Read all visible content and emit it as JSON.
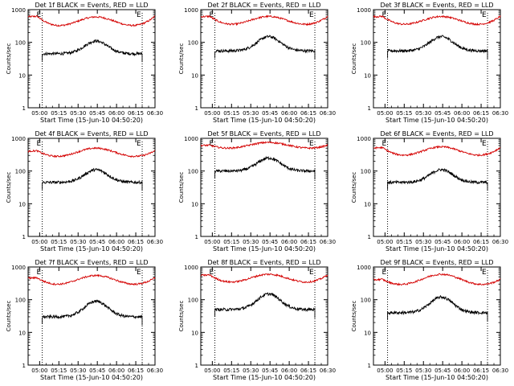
{
  "colors": {
    "events": "#000000",
    "lld": "#d40000",
    "axes": "#000000"
  },
  "chart_data": [
    {
      "type": "line",
      "title": "Det 1f BLACK = Events, RED = LLD",
      "xlabel": "Start Time (15-Jun-10 04:50:20)",
      "ylabel": "Counts/sec",
      "ylim": [
        1,
        1000
      ],
      "yscale": "log",
      "x_ticks": [
        "05:00",
        "05:15",
        "05:30",
        "05:45",
        "06:00",
        "06:15",
        "06:30"
      ],
      "y_ticks": [
        "1",
        "10",
        "100",
        "1000"
      ],
      "x_start": "04:51",
      "x_end": "06:30",
      "markers": [
        {
          "t": "05:02",
          "label": "E"
        },
        {
          "t": "06:20",
          "label": "E"
        }
      ],
      "peak_t": "05:44",
      "series": [
        {
          "name": "LLD",
          "base": 170,
          "peak": 600,
          "edge": 600
        },
        {
          "name": "Events",
          "base": 45,
          "peak": 110,
          "edge": 45
        }
      ]
    },
    {
      "type": "line",
      "title": "Det 2f BLACK = Events, RED = LLD",
      "xlabel": "Start Time (15-Jun-10 04:50:20)",
      "ylabel": "Counts/sec",
      "ylim": [
        1,
        1000
      ],
      "yscale": "log",
      "x_ticks": [
        "05:00",
        "05:15",
        "05:30",
        "05:45",
        "06:00",
        "06:15",
        "06:30"
      ],
      "y_ticks": [
        "1",
        "10",
        "100",
        "1000"
      ],
      "x_start": "04:51",
      "x_end": "06:30",
      "markers": [
        {
          "t": "05:02",
          "label": "E"
        },
        {
          "t": "06:20",
          "label": "E"
        }
      ],
      "peak_t": "05:44",
      "series": [
        {
          "name": "LLD",
          "base": 200,
          "peak": 620,
          "edge": 600
        },
        {
          "name": "Events",
          "base": 55,
          "peak": 150,
          "edge": 55
        }
      ]
    },
    {
      "type": "line",
      "title": "Det 3f BLACK = Events, RED = LLD",
      "xlabel": "Start Time (15-Jun-10 04:50:20)",
      "ylabel": "Counts/sec",
      "ylim": [
        1,
        1000
      ],
      "yscale": "log",
      "x_ticks": [
        "05:00",
        "05:15",
        "05:30",
        "05:45",
        "06:00",
        "06:15",
        "06:30"
      ],
      "y_ticks": [
        "1",
        "10",
        "100",
        "1000"
      ],
      "x_start": "04:51",
      "x_end": "06:30",
      "markers": [
        {
          "t": "05:02",
          "label": "E"
        },
        {
          "t": "06:20",
          "label": "E"
        }
      ],
      "peak_t": "05:44",
      "series": [
        {
          "name": "LLD",
          "base": 200,
          "peak": 620,
          "edge": 600
        },
        {
          "name": "Events",
          "base": 55,
          "peak": 150,
          "edge": 55
        }
      ]
    },
    {
      "type": "line",
      "title": "Det 4f BLACK = Events, RED = LLD",
      "xlabel": "Start Time (15-Jun-10 04:50:20)",
      "ylabel": "Counts/sec",
      "ylim": [
        1,
        1000
      ],
      "yscale": "log",
      "x_ticks": [
        "05:00",
        "05:15",
        "05:30",
        "05:45",
        "06:00",
        "06:15",
        "06:30"
      ],
      "y_ticks": [
        "1",
        "10",
        "100",
        "1000"
      ],
      "x_start": "04:51",
      "x_end": "06:30",
      "markers": [
        {
          "t": "05:02",
          "label": "E"
        },
        {
          "t": "06:20",
          "label": "E"
        }
      ],
      "peak_t": "05:44",
      "series": [
        {
          "name": "LLD",
          "base": 170,
          "peak": 500,
          "edge": 400
        },
        {
          "name": "Events",
          "base": 45,
          "peak": 110,
          "edge": 45
        }
      ]
    },
    {
      "type": "line",
      "title": "Det 5f BLACK = Events, RED = LLD",
      "xlabel": "Start Time (15-Jun-10 04:50:20)",
      "ylabel": "Counts/sec",
      "ylim": [
        1,
        1000
      ],
      "yscale": "log",
      "x_ticks": [
        "05:00",
        "05:15",
        "05:30",
        "05:45",
        "06:00",
        "06:15",
        "06:30"
      ],
      "y_ticks": [
        "1",
        "10",
        "100",
        "1000"
      ],
      "x_start": "04:51",
      "x_end": "06:30",
      "markers": [
        {
          "t": "05:02",
          "label": "E"
        },
        {
          "t": "06:20",
          "label": "E"
        }
      ],
      "peak_t": "05:44",
      "series": [
        {
          "name": "LLD",
          "base": 370,
          "peak": 750,
          "edge": 600
        },
        {
          "name": "Events",
          "base": 100,
          "peak": 250,
          "edge": 100
        }
      ]
    },
    {
      "type": "line",
      "title": "Det 6f BLACK = Events, RED = LLD",
      "xlabel": "Start Time (15-Jun-10 04:50:20)",
      "ylabel": "Counts/sec",
      "ylim": [
        1,
        1000
      ],
      "yscale": "log",
      "x_ticks": [
        "05:00",
        "05:15",
        "05:30",
        "05:45",
        "06:00",
        "06:15",
        "06:30"
      ],
      "y_ticks": [
        "1",
        "10",
        "100",
        "1000"
      ],
      "x_start": "04:51",
      "x_end": "06:30",
      "markers": [
        {
          "t": "05:02",
          "label": "E"
        },
        {
          "t": "06:20",
          "label": "E"
        }
      ],
      "peak_t": "05:44",
      "series": [
        {
          "name": "LLD",
          "base": 170,
          "peak": 550,
          "edge": 500
        },
        {
          "name": "Events",
          "base": 45,
          "peak": 110,
          "edge": 45
        }
      ]
    },
    {
      "type": "line",
      "title": "Det 7f BLACK = Events, RED = LLD",
      "xlabel": "Start Time (15-Jun-10 04:50:20)",
      "ylabel": "Counts/sec",
      "ylim": [
        1,
        1000
      ],
      "yscale": "log",
      "x_ticks": [
        "05:00",
        "05:15",
        "05:30",
        "05:45",
        "06:00",
        "06:15",
        "06:30"
      ],
      "y_ticks": [
        "1",
        "10",
        "100",
        "1000"
      ],
      "x_start": "04:51",
      "x_end": "06:30",
      "markers": [
        {
          "t": "05:02",
          "label": "E"
        },
        {
          "t": "06:20",
          "label": "E"
        }
      ],
      "peak_t": "05:44",
      "series": [
        {
          "name": "LLD",
          "base": 170,
          "peak": 550,
          "edge": 450
        },
        {
          "name": "Events",
          "base": 30,
          "peak": 90,
          "edge": 30
        }
      ]
    },
    {
      "type": "line",
      "title": "Det 8f BLACK = Events, RED = LLD",
      "xlabel": "Start Time (15-Jun-10 04:50:20)",
      "ylabel": "Counts/sec",
      "ylim": [
        1,
        1000
      ],
      "yscale": "log",
      "x_ticks": [
        "05:00",
        "05:15",
        "05:30",
        "05:45",
        "06:00",
        "06:15",
        "06:30"
      ],
      "y_ticks": [
        "1",
        "10",
        "100",
        "1000"
      ],
      "x_start": "04:51",
      "x_end": "06:30",
      "markers": [
        {
          "t": "05:02",
          "label": "E"
        },
        {
          "t": "06:20",
          "label": "E"
        }
      ],
      "peak_t": "05:44",
      "series": [
        {
          "name": "LLD",
          "base": 200,
          "peak": 600,
          "edge": 550
        },
        {
          "name": "Events",
          "base": 50,
          "peak": 150,
          "edge": 50
        }
      ]
    },
    {
      "type": "line",
      "title": "Det 9f BLACK = Events, RED = LLD",
      "xlabel": "Start Time (15-Jun-10 04:50:20)",
      "ylabel": "Counts/sec",
      "ylim": [
        1,
        1000
      ],
      "yscale": "log",
      "x_ticks": [
        "05:00",
        "05:15",
        "05:30",
        "05:45",
        "06:00",
        "06:15",
        "06:30"
      ],
      "y_ticks": [
        "1",
        "10",
        "100",
        "1000"
      ],
      "x_start": "04:51",
      "x_end": "06:30",
      "markers": [
        {
          "t": "05:02",
          "label": "E"
        },
        {
          "t": "06:20",
          "label": "E"
        }
      ],
      "peak_t": "05:44",
      "series": [
        {
          "name": "LLD",
          "base": 170,
          "peak": 600,
          "edge": 400
        },
        {
          "name": "Events",
          "base": 40,
          "peak": 120,
          "edge": 40
        }
      ]
    }
  ]
}
